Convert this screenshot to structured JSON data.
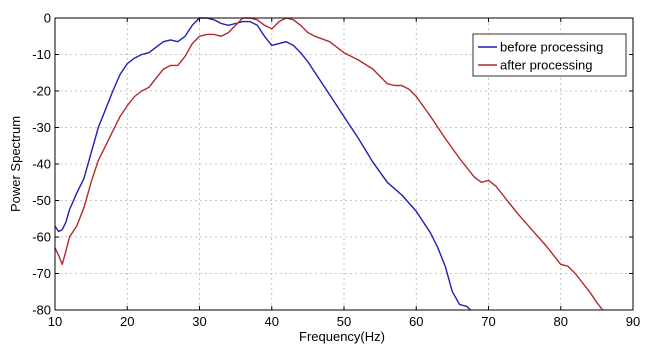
{
  "chart_data": {
    "type": "line",
    "title": "",
    "xlabel": "Frequency(Hz)",
    "ylabel": "Power Spectrum",
    "xlim": [
      10,
      90
    ],
    "ylim": [
      -80,
      0
    ],
    "x_ticks": [
      "10",
      "20",
      "30",
      "40",
      "50",
      "60",
      "70",
      "80",
      "90"
    ],
    "y_ticks": [
      "0",
      "-10",
      "-20",
      "-30",
      "-40",
      "-50",
      "-60",
      "-70",
      "-80"
    ],
    "grid": true,
    "legend_position": "top-right",
    "series": [
      {
        "name": "before processing",
        "color": "#1f1fb4",
        "points": [
          [
            10,
            -57
          ],
          [
            10.5,
            -58.5
          ],
          [
            11,
            -58
          ],
          [
            11.5,
            -56
          ],
          [
            12,
            -52.5
          ],
          [
            13,
            -48
          ],
          [
            14,
            -44
          ],
          [
            15,
            -37
          ],
          [
            16,
            -30
          ],
          [
            17,
            -25
          ],
          [
            18,
            -20
          ],
          [
            19,
            -15.5
          ],
          [
            20,
            -12.5
          ],
          [
            21,
            -11
          ],
          [
            22,
            -10
          ],
          [
            23,
            -9.5
          ],
          [
            24,
            -8
          ],
          [
            25,
            -6.5
          ],
          [
            26,
            -6
          ],
          [
            27,
            -6.5
          ],
          [
            28,
            -5
          ],
          [
            29,
            -2
          ],
          [
            30,
            0
          ],
          [
            31,
            0
          ],
          [
            32,
            -0.5
          ],
          [
            33,
            -1.5
          ],
          [
            34,
            -2
          ],
          [
            35,
            -1.5
          ],
          [
            36,
            -1
          ],
          [
            37,
            -1
          ],
          [
            38,
            -2
          ],
          [
            39,
            -5
          ],
          [
            40,
            -7.5
          ],
          [
            41,
            -7
          ],
          [
            42,
            -6.5
          ],
          [
            43,
            -7.5
          ],
          [
            44,
            -9.5
          ],
          [
            45,
            -12
          ],
          [
            46,
            -15
          ],
          [
            48,
            -21
          ],
          [
            50,
            -27
          ],
          [
            52,
            -33
          ],
          [
            54,
            -39.5
          ],
          [
            56,
            -45
          ],
          [
            58,
            -48.5
          ],
          [
            60,
            -53
          ],
          [
            62,
            -59
          ],
          [
            63,
            -63
          ],
          [
            64,
            -68
          ],
          [
            65,
            -75
          ],
          [
            66,
            -78.5
          ],
          [
            67,
            -79
          ],
          [
            67.5,
            -80
          ]
        ]
      },
      {
        "name": "after processing",
        "color": "#b22a2a",
        "points": [
          [
            10,
            -63
          ],
          [
            10.5,
            -65
          ],
          [
            11,
            -67.5
          ],
          [
            11.5,
            -64
          ],
          [
            12,
            -60
          ],
          [
            13,
            -57
          ],
          [
            14,
            -52
          ],
          [
            15,
            -45
          ],
          [
            16,
            -39
          ],
          [
            17,
            -35
          ],
          [
            18,
            -31
          ],
          [
            19,
            -27
          ],
          [
            20,
            -24
          ],
          [
            21,
            -21.5
          ],
          [
            22,
            -20
          ],
          [
            23,
            -19
          ],
          [
            24,
            -16.5
          ],
          [
            25,
            -14
          ],
          [
            26,
            -13
          ],
          [
            27,
            -13
          ],
          [
            28,
            -10.5
          ],
          [
            29,
            -7
          ],
          [
            30,
            -5
          ],
          [
            31,
            -4.5
          ],
          [
            32,
            -4.5
          ],
          [
            33,
            -5
          ],
          [
            34,
            -4
          ],
          [
            35,
            -2
          ],
          [
            36,
            0
          ],
          [
            37,
            0
          ],
          [
            38,
            -0.5
          ],
          [
            39,
            -2
          ],
          [
            40,
            -3
          ],
          [
            41,
            -1
          ],
          [
            42,
            0
          ],
          [
            43,
            -0.5
          ],
          [
            44,
            -2
          ],
          [
            45,
            -4
          ],
          [
            46,
            -5
          ],
          [
            48,
            -6.5
          ],
          [
            50,
            -9.5
          ],
          [
            52,
            -11.5
          ],
          [
            54,
            -14
          ],
          [
            56,
            -18
          ],
          [
            57,
            -18.5
          ],
          [
            58,
            -18.5
          ],
          [
            59,
            -19.5
          ],
          [
            60,
            -21.5
          ],
          [
            62,
            -27
          ],
          [
            64,
            -33
          ],
          [
            66,
            -38.5
          ],
          [
            68,
            -43.5
          ],
          [
            69,
            -45
          ],
          [
            70,
            -44.5
          ],
          [
            71,
            -46
          ],
          [
            72,
            -48.5
          ],
          [
            74,
            -53.5
          ],
          [
            76,
            -58
          ],
          [
            78,
            -62.5
          ],
          [
            80,
            -67.5
          ],
          [
            81,
            -68
          ],
          [
            82,
            -70
          ],
          [
            84,
            -75
          ],
          [
            85,
            -78
          ],
          [
            85.8,
            -80
          ]
        ]
      }
    ]
  }
}
